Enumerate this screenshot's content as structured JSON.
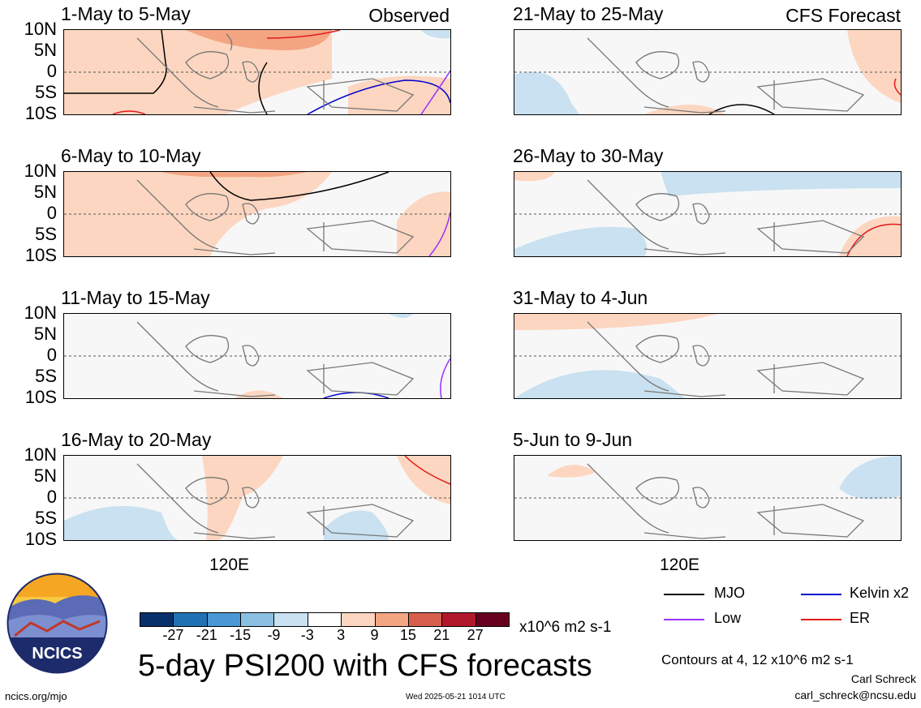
{
  "panels": [
    {
      "id": "p1",
      "title": "1-May to 5-May",
      "tag": "Observed"
    },
    {
      "id": "p2",
      "title": "6-May to 10-May",
      "tag": ""
    },
    {
      "id": "p3",
      "title": "11-May to 15-May",
      "tag": ""
    },
    {
      "id": "p4",
      "title": "16-May to 20-May",
      "tag": ""
    },
    {
      "id": "p5",
      "title": "21-May to 25-May",
      "tag": "CFS Forecast"
    },
    {
      "id": "p6",
      "title": "26-May to 30-May",
      "tag": ""
    },
    {
      "id": "p7",
      "title": "31-May to 4-Jun",
      "tag": ""
    },
    {
      "id": "p8",
      "title": "5-Jun to 9-Jun",
      "tag": ""
    }
  ],
  "y_ticks": [
    "10N",
    "5N",
    "0",
    "5S",
    "10S"
  ],
  "x_tick": "120E",
  "colorbar": {
    "colors": [
      "#08306b",
      "#2171b5",
      "#4a98d3",
      "#8cc0e3",
      "#c9e1f0",
      "#ffffff",
      "#fcd6c0",
      "#f4a582",
      "#d6604d",
      "#b2182b",
      "#67001f"
    ],
    "labels": [
      "-27",
      "-21",
      "-15",
      "-9",
      "-3",
      "3",
      "9",
      "15",
      "21",
      "27"
    ],
    "units": "x10^6 m2 s-1"
  },
  "legend": [
    {
      "label": "MJO",
      "color": "#000000"
    },
    {
      "label": "Kelvin x2",
      "color": "#0000cc"
    },
    {
      "label": "Low",
      "color": "#9b30ff"
    },
    {
      "label": "ER",
      "color": "#e31a1c"
    }
  ],
  "main_title": "5-day PSI200 with CFS forecasts",
  "contours_note": "Contours at 4, 12 x10^6 m2 s-1",
  "author": "Carl Schreck",
  "email": "carl_schreck@ncsu.edu",
  "url": "ncics.org/mjo",
  "timestamp": "Wed 2025-05-21 1014 UTC",
  "logo_text": "NCICS"
}
